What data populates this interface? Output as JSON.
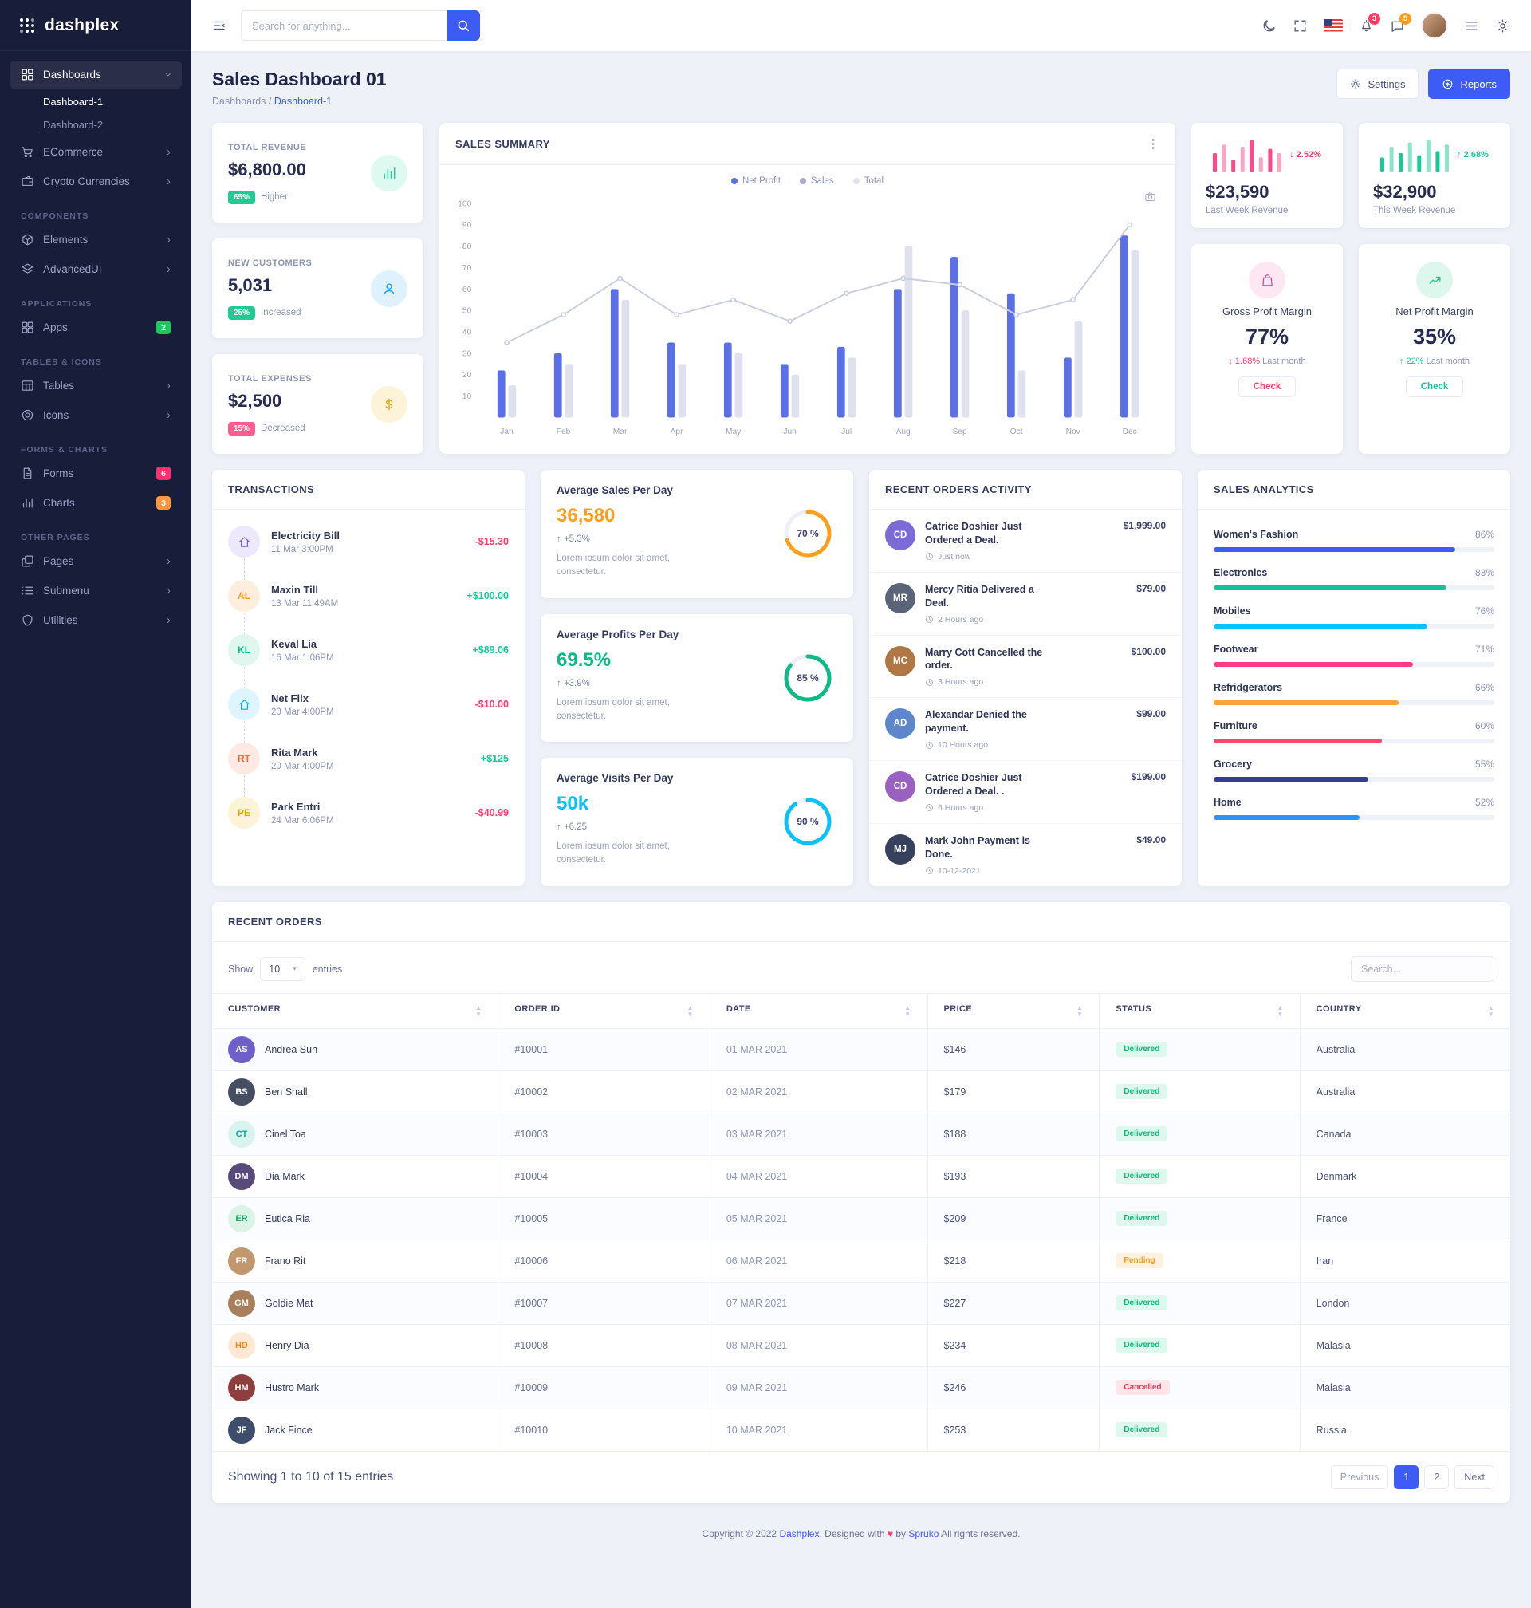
{
  "brand": "dashplex",
  "topbar": {
    "search_placeholder": "Search for anything...",
    "notification_count": "3",
    "message_count": "5"
  },
  "sidebar": {
    "groups": [
      {
        "heading": "",
        "items": [
          {
            "label": "Dashboards",
            "icon": "grid-icon",
            "active": true,
            "expanded": true,
            "children": [
              {
                "label": "Dashboard-1",
                "active": true
              },
              {
                "label": "Dashboard-2",
                "active": false
              }
            ]
          },
          {
            "label": "ECommerce",
            "icon": "cart-icon",
            "arrow": true
          },
          {
            "label": "Crypto Currencies",
            "icon": "wallet-icon",
            "arrow": true
          }
        ]
      },
      {
        "heading": "COMPONENTS",
        "items": [
          {
            "label": "Elements",
            "icon": "box-icon",
            "arrow": true
          },
          {
            "label": "AdvancedUI",
            "icon": "layers-icon",
            "arrow": true
          }
        ]
      },
      {
        "heading": "APPLICATIONS",
        "items": [
          {
            "label": "Apps",
            "icon": "apps-icon",
            "badge": "2",
            "badge_color": "#22c55e"
          }
        ]
      },
      {
        "heading": "TABLES & ICONS",
        "items": [
          {
            "label": "Tables",
            "icon": "table-icon",
            "arrow": true
          },
          {
            "label": "Icons",
            "icon": "target-icon",
            "arrow": true
          }
        ]
      },
      {
        "heading": "FORMS & CHARTS",
        "items": [
          {
            "label": "Forms",
            "icon": "file-icon",
            "badge": "6",
            "badge_color": "#fd2f6e"
          },
          {
            "label": "Charts",
            "icon": "bar-chart-icon",
            "badge": "3",
            "badge_color": "#fd9644"
          }
        ]
      },
      {
        "heading": "OTHER PAGES",
        "items": [
          {
            "label": "Pages",
            "icon": "pages-icon",
            "arrow": true
          },
          {
            "label": "Submenu",
            "icon": "list-icon",
            "arrow": true
          },
          {
            "label": "Utilities",
            "icon": "shield-icon",
            "arrow": true
          }
        ]
      }
    ]
  },
  "page_header": {
    "title": "Sales Dashboard 01",
    "breadcrumb_root": "Dashboards",
    "breadcrumb_sep": "/",
    "breadcrumb_current": "Dashboard-1",
    "settings_label": "Settings",
    "reports_label": "Reports"
  },
  "stat_cards": [
    {
      "title": "TOTAL REVENUE",
      "value": "$6,800.00",
      "pct": "65%",
      "note": "Higher",
      "badge_tone": "success",
      "icon_tone": "success",
      "icon": "bar-chart-icon"
    },
    {
      "title": "NEW CUSTOMERS",
      "value": "5,031",
      "pct": "25%",
      "note": "Increased",
      "badge_tone": "success",
      "icon_tone": "info",
      "icon": "user-icon"
    },
    {
      "title": "TOTAL EXPENSES",
      "value": "$2,500",
      "pct": "15%",
      "note": "Decreased",
      "badge_tone": "danger",
      "icon_tone": "warning",
      "icon": "dollar-icon"
    }
  ],
  "sales_summary": {
    "title": "SALES SUMMARY",
    "legend": [
      {
        "label": "Net Profit",
        "color": "#5b6fe6"
      },
      {
        "label": "Sales",
        "color": "#a8aec7"
      },
      {
        "label": "Total",
        "color": "#dfe2ee"
      }
    ]
  },
  "chart_data": [
    {
      "id": "sales_summary",
      "type": "bar",
      "x": [
        "Jan",
        "Feb",
        "Mar",
        "Apr",
        "May",
        "Jun",
        "Jul",
        "Aug",
        "Sep",
        "Oct",
        "Nov",
        "Dec"
      ],
      "series": [
        {
          "name": "Net Profit",
          "type": "bar",
          "color": "#5b6fe6",
          "values": [
            22,
            30,
            60,
            35,
            35,
            25,
            33,
            60,
            75,
            58,
            28,
            85
          ]
        },
        {
          "name": "Total",
          "type": "bar",
          "color": "#dfe2ee",
          "values": [
            15,
            25,
            55,
            25,
            30,
            20,
            28,
            80,
            50,
            22,
            45,
            78
          ]
        },
        {
          "name": "Sales",
          "type": "line",
          "color": "#c9cede",
          "values": [
            35,
            48,
            65,
            48,
            55,
            45,
            58,
            65,
            62,
            48,
            55,
            90
          ]
        }
      ],
      "ylim": [
        0,
        100
      ],
      "yticks": [
        10,
        20,
        30,
        40,
        50,
        60,
        70,
        80,
        90,
        100
      ],
      "grid": false,
      "legend_position": "top"
    },
    {
      "id": "last_week_spark",
      "type": "bar",
      "color": "#fc4a8c",
      "values": [
        9,
        13,
        6,
        12,
        15,
        7,
        11,
        9
      ]
    },
    {
      "id": "this_week_spark",
      "type": "bar",
      "color": "#19ca96",
      "values": [
        7,
        12,
        9,
        14,
        8,
        15,
        10,
        13
      ]
    },
    {
      "id": "avg_sales_donut",
      "type": "donut",
      "value": 70,
      "label": "70 %",
      "color": "#ff9f1c"
    },
    {
      "id": "avg_profit_donut",
      "type": "donut",
      "value": 85,
      "label": "85 %",
      "color": "#0cba87"
    },
    {
      "id": "avg_visits_donut",
      "type": "donut",
      "value": 90,
      "label": "90 %",
      "color": "#06c2fc"
    }
  ],
  "week_cards": [
    {
      "value": "$23,590",
      "label": "Last Week Revenue",
      "delta": "2.52%",
      "dir": "down",
      "spark": "last_week_spark"
    },
    {
      "value": "$32,900",
      "label": "This Week Revenue",
      "delta": "2.68%",
      "dir": "up",
      "spark": "this_week_spark"
    }
  ],
  "margin_cards": [
    {
      "title": "Gross Profit Margin",
      "value": "77%",
      "delta": "1.68%",
      "delta_note": "Last month",
      "dir": "down",
      "button": "Check",
      "tone": "pink",
      "icon": "bag-icon"
    },
    {
      "title": "Net Profit Margin",
      "value": "35%",
      "delta": "22%",
      "delta_note": "Last month",
      "dir": "up",
      "button": "Check",
      "tone": "green",
      "icon": "trend-up-icon"
    }
  ],
  "transactions": {
    "title": "TRANSACTIONS",
    "items": [
      {
        "icon": "home-icon",
        "bg": "#eee8fd",
        "fg": "#7a5af8",
        "name": "Electricity Bill",
        "time": "11 Mar 3:00PM",
        "amount": "-$15.30",
        "neg": true
      },
      {
        "initials": "AL",
        "bg": "#ffeede",
        "fg": "#ff9b21",
        "name": "Maxin Till",
        "time": "13 Mar 11:49AM",
        "amount": "+$100.00",
        "neg": false
      },
      {
        "initials": "KL",
        "bg": "#dff7ef",
        "fg": "#0cbc8b",
        "name": "Keval Lia",
        "time": "16 Mar 1:06PM",
        "amount": "+$89.06",
        "neg": false
      },
      {
        "icon": "home-icon",
        "bg": "#dff5fd",
        "fg": "#04b5f0",
        "name": "Net Flix",
        "time": "20 Mar 4:00PM",
        "amount": "-$10.00",
        "neg": true
      },
      {
        "initials": "RT",
        "bg": "#ffe9e2",
        "fg": "#fd6a3b",
        "name": "Rita Mark",
        "time": "20 Mar 4:00PM",
        "amount": "+$125",
        "neg": false
      },
      {
        "initials": "PE",
        "bg": "#fdf3d7",
        "fg": "#e0a80d",
        "name": "Park Entri",
        "time": "24 Mar 6:06PM",
        "amount": "-$40.99",
        "neg": true
      }
    ]
  },
  "averages": [
    {
      "title": "Average Sales Per Day",
      "value": "36,580",
      "color": "#ff9f1c",
      "delta": "+5.3%",
      "desc": "Lorem ipsum dolor sit amet, consectetur.",
      "donut": "avg_sales_donut"
    },
    {
      "title": "Average Profits Per Day",
      "value": "69.5%",
      "color": "#0cba87",
      "delta": "+3.9%",
      "desc": "Lorem ipsum dolor sit amet, consectetur.",
      "donut": "avg_profit_donut"
    },
    {
      "title": "Average Visits Per Day",
      "value": "50k",
      "color": "#06c2fc",
      "delta": "+6.25",
      "desc": "Lorem ipsum dolor sit amet, consectetur.",
      "donut": "avg_visits_donut"
    }
  ],
  "activity": {
    "title": "RECENT ORDERS ACTIVITY",
    "items": [
      {
        "initials": "CD",
        "bg": "#7c6bd6",
        "name": "Catrice Doshier Just Ordered a Deal.",
        "time": "Just now",
        "amount": "$1,999.00"
      },
      {
        "initials": "MR",
        "bg": "#5b6478",
        "name": "Mercy Ritia Delivered a Deal.",
        "time": "2 Hours ago",
        "amount": "$79.00"
      },
      {
        "initials": "MC",
        "bg": "#b07744",
        "name": "Marry Cott Cancelled the order.",
        "time": "3 Hours ago",
        "amount": "$100.00"
      },
      {
        "initials": "AD",
        "bg": "#5d87c9",
        "name": "Alexandar Denied the payment.",
        "time": "10 Hours ago",
        "amount": "$99.00"
      },
      {
        "initials": "CD",
        "bg": "#9a62c0",
        "name": "Catrice Doshier Just Ordered a Deal. .",
        "time": "5 Hours ago",
        "amount": "$199.00"
      },
      {
        "initials": "MJ",
        "bg": "#37415c",
        "name": "Mark John Payment is Done.",
        "time": "10-12-2021",
        "amount": "$49.00"
      }
    ]
  },
  "analytics": {
    "title": "SALES ANALYTICS",
    "items": [
      {
        "label": "Women's Fashion",
        "pct": 86,
        "color": "#3d5cf5"
      },
      {
        "label": "Electronics",
        "pct": 83,
        "color": "#13c296"
      },
      {
        "label": "Mobiles",
        "pct": 76,
        "color": "#05c3fb"
      },
      {
        "label": "Footwear",
        "pct": 71,
        "color": "#fc3c87"
      },
      {
        "label": "Refridgerators",
        "pct": 66,
        "color": "#ffa33c"
      },
      {
        "label": "Furniture",
        "pct": 60,
        "color": "#f8496c"
      },
      {
        "label": "Grocery",
        "pct": 55,
        "color": "#333f8f"
      },
      {
        "label": "Home",
        "pct": 52,
        "color": "#2f93f6"
      }
    ]
  },
  "orders": {
    "title": "RECENT ORDERS",
    "show_label": "Show",
    "page_size": "10",
    "entries_label": "entries",
    "search_placeholder": "Search...",
    "columns": [
      "CUSTOMER",
      "ORDER ID",
      "DATE",
      "PRICE",
      "STATUS",
      "COUNTRY"
    ],
    "rows": [
      {
        "initials": "AS",
        "bg": "#6e5fc9",
        "fg": "#ffffff",
        "name": "Andrea Sun",
        "order_id": "#10001",
        "date": "01 MAR 2021",
        "price": "$146",
        "status": "Delivered",
        "country": "Australia"
      },
      {
        "initials": "BS",
        "bg": "#454e63",
        "fg": "#ffffff",
        "name": "Ben Shall",
        "order_id": "#10002",
        "date": "02 MAR 2021",
        "price": "$179",
        "status": "Delivered",
        "country": "Australia"
      },
      {
        "initials": "CT",
        "bg": "#d9f3ef",
        "fg": "#12a79e",
        "name": "Cinel Toa",
        "order_id": "#10003",
        "date": "03 MAR 2021",
        "price": "$188",
        "status": "Delivered",
        "country": "Canada"
      },
      {
        "initials": "DM",
        "bg": "#584a79",
        "fg": "#ffffff",
        "name": "Dia Mark",
        "order_id": "#10004",
        "date": "04 MAR 2021",
        "price": "$193",
        "status": "Delivered",
        "country": "Denmark"
      },
      {
        "initials": "ER",
        "bg": "#dcf3e7",
        "fg": "#16a06a",
        "name": "Eutica Ria",
        "order_id": "#10005",
        "date": "05 MAR 2021",
        "price": "$209",
        "status": "Delivered",
        "country": "France"
      },
      {
        "initials": "FR",
        "bg": "#c2976d",
        "fg": "#ffffff",
        "name": "Frano Rit",
        "order_id": "#10006",
        "date": "06 MAR 2021",
        "price": "$218",
        "status": "Pending",
        "country": "Iran"
      },
      {
        "initials": "GM",
        "bg": "#a8815c",
        "fg": "#ffffff",
        "name": "Goldie Mat",
        "order_id": "#10007",
        "date": "07 MAR 2021",
        "price": "$227",
        "status": "Delivered",
        "country": "London"
      },
      {
        "initials": "HD",
        "bg": "#ffe9d4",
        "fg": "#f08c1d",
        "name": "Henry Dia",
        "order_id": "#10008",
        "date": "08 MAR 2021",
        "price": "$234",
        "status": "Delivered",
        "country": "Malasia"
      },
      {
        "initials": "HM",
        "bg": "#8f3e3e",
        "fg": "#ffffff",
        "name": "Hustro Mark",
        "order_id": "#10009",
        "date": "09 MAR 2021",
        "price": "$246",
        "status": "Cancelled",
        "country": "Malasia"
      },
      {
        "initials": "JF",
        "bg": "#3e4d6b",
        "fg": "#ffffff",
        "name": "Jack Fince",
        "order_id": "#10010",
        "date": "10 MAR 2021",
        "price": "$253",
        "status": "Delivered",
        "country": "Russia"
      }
    ],
    "summary": "Showing 1 to 10 of 15 entries",
    "pagination": {
      "prev": "Previous",
      "pages": [
        "1",
        "2"
      ],
      "active": "1",
      "next": "Next"
    }
  },
  "footer": {
    "copyright": "Copyright © 2022",
    "brand": "Dashplex",
    "designed": ". Designed with",
    "heart": "♥",
    "by": "by",
    "by_brand": "Spruko",
    "rights": "All rights reserved."
  }
}
